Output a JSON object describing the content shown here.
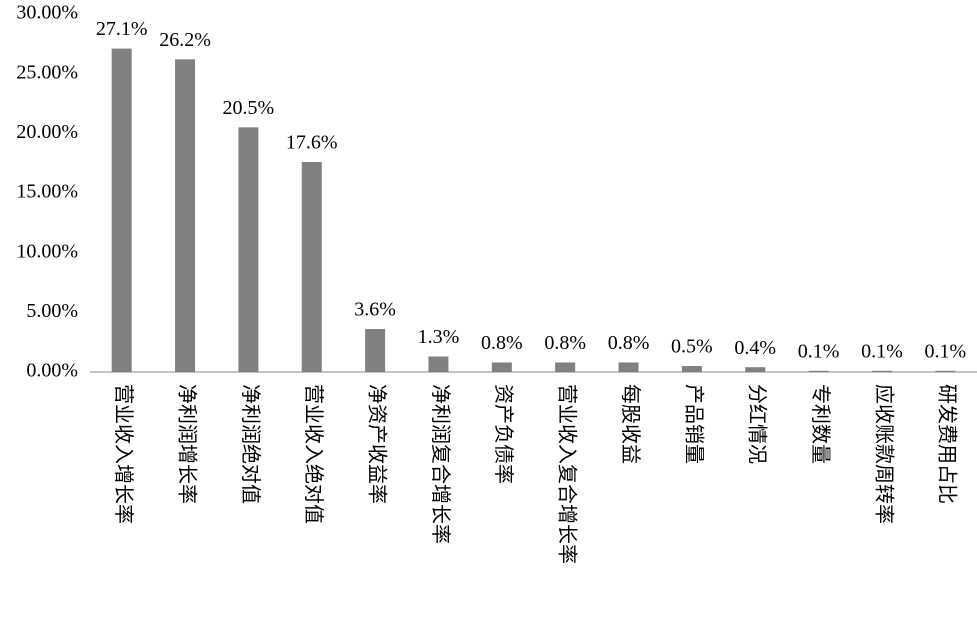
{
  "chart_data": {
    "type": "bar",
    "categories": [
      "营业收入增长率",
      "净利润增长率",
      "净利润绝对值",
      "营业收入绝对值",
      "净资产收益率",
      "净利润复合增长率",
      "资产负债率",
      "营业收入复合增长率",
      "每股收益",
      "产品销量",
      "分红情况",
      "专利数量",
      "应收账款周转率",
      "研发费用占比"
    ],
    "values": [
      27.1,
      26.2,
      20.5,
      17.6,
      3.6,
      1.3,
      0.8,
      0.8,
      0.8,
      0.5,
      0.4,
      0.1,
      0.1,
      0.1
    ],
    "value_labels": [
      "27.1%",
      "26.2%",
      "20.5%",
      "17.6%",
      "3.6%",
      "1.3%",
      "0.8%",
      "0.8%",
      "0.8%",
      "0.5%",
      "0.4%",
      "0.1%",
      "0.1%",
      "0.1%"
    ],
    "color": "#808080",
    "ylim": [
      0,
      30
    ],
    "yticks": [
      {
        "value": 0,
        "label": "0.00%"
      },
      {
        "value": 5,
        "label": "5.00%"
      },
      {
        "value": 10,
        "label": "10.00%"
      },
      {
        "value": 15,
        "label": "15.00%"
      },
      {
        "value": 20,
        "label": "20.00%"
      },
      {
        "value": 25,
        "label": "25.00%"
      },
      {
        "value": 30,
        "label": "30.00%"
      }
    ],
    "grid": false
  }
}
